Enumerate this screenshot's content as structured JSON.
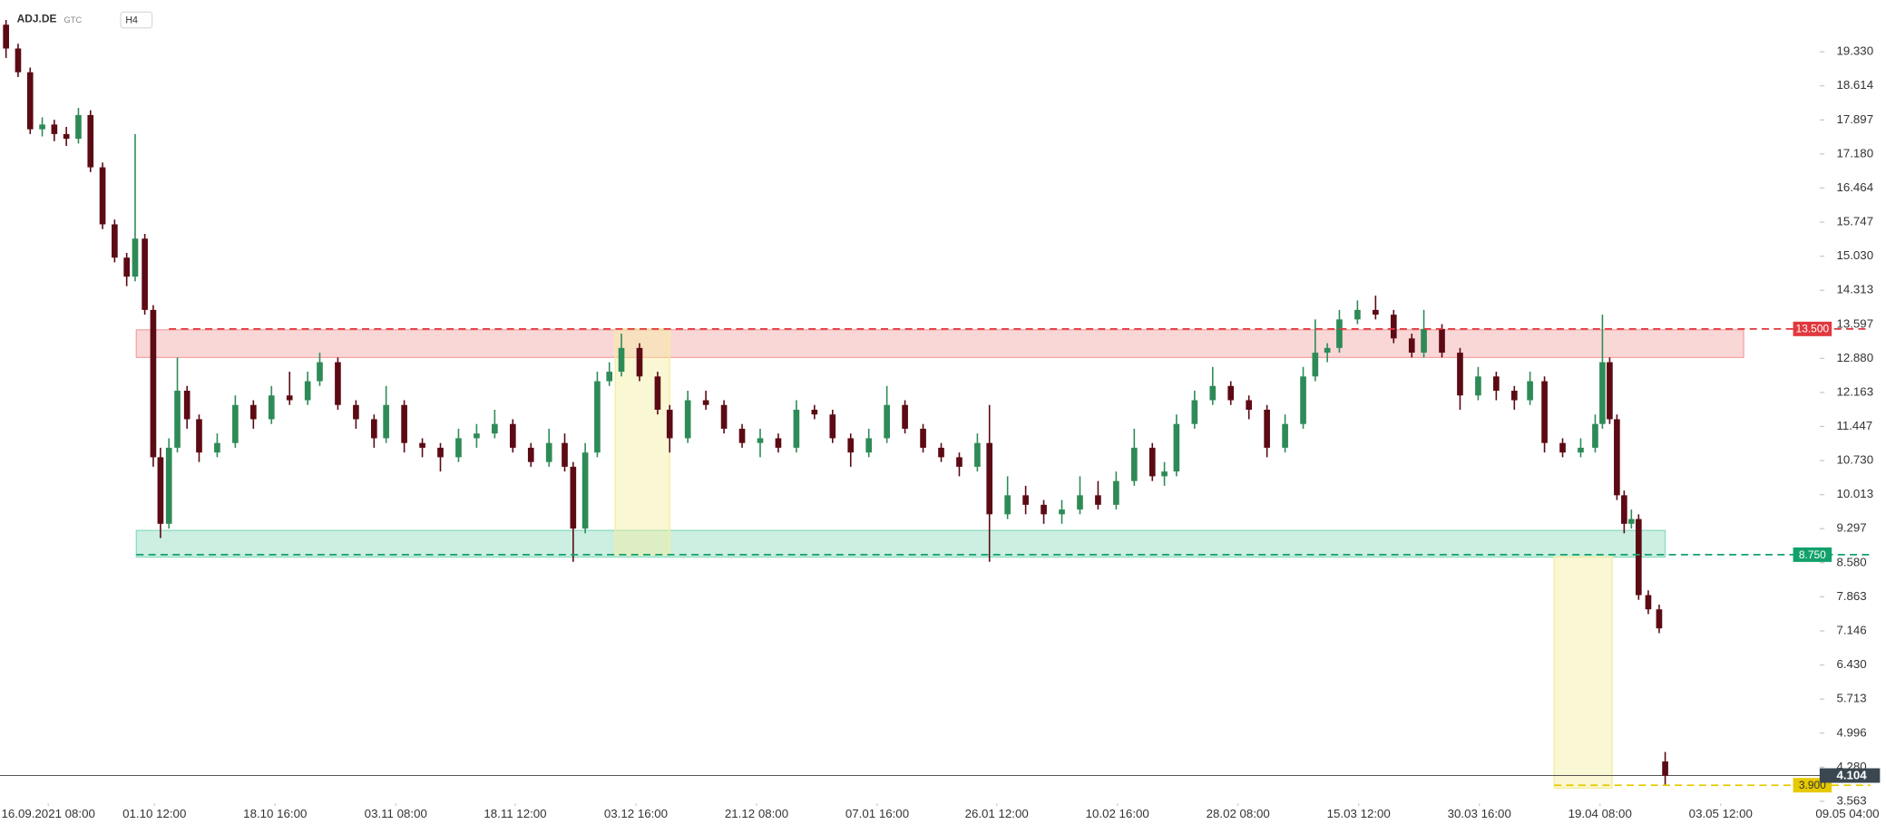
{
  "header": {
    "symbol": "ADJ.DE",
    "order": "GTC",
    "timeframe": "H4"
  },
  "chart_data": {
    "type": "candlestick",
    "xlim": [
      0,
      1563
    ],
    "ylim": [
      3.44,
      20.42
    ],
    "xticks": [
      {
        "value": 40,
        "label": "16.09.2021 08:00"
      },
      {
        "value": 128,
        "label": "01.10 12:00"
      },
      {
        "value": 228,
        "label": "18.10 16:00"
      },
      {
        "value": 328,
        "label": "03.11 08:00"
      },
      {
        "value": 427,
        "label": "18.11 12:00"
      },
      {
        "value": 527,
        "label": "03.12 16:00"
      },
      {
        "value": 627,
        "label": "21.12 08:00"
      },
      {
        "value": 727,
        "label": "07.01 16:00"
      },
      {
        "value": 826,
        "label": "26.01 12:00"
      },
      {
        "value": 926,
        "label": "10.02 16:00"
      },
      {
        "value": 1026,
        "label": "28.02 08:00"
      },
      {
        "value": 1126,
        "label": "15.03 12:00"
      },
      {
        "value": 1226,
        "label": "30.03 16:00"
      },
      {
        "value": 1326,
        "label": "19.04 08:00"
      },
      {
        "value": 1426,
        "label": "03.05 12:00"
      },
      {
        "value": 1531,
        "label": "09.05 04:00"
      }
    ],
    "yticks": [
      {
        "value": 19.33,
        "label": "19.330"
      },
      {
        "value": 18.614,
        "label": "18.614"
      },
      {
        "value": 17.897,
        "label": "17.897"
      },
      {
        "value": 17.18,
        "label": "17.180"
      },
      {
        "value": 16.464,
        "label": "16.464"
      },
      {
        "value": 15.747,
        "label": "15.747"
      },
      {
        "value": 15.03,
        "label": "15.030"
      },
      {
        "value": 14.313,
        "label": "14.313"
      },
      {
        "value": 13.597,
        "label": "13.597"
      },
      {
        "value": 12.88,
        "label": "12.880"
      },
      {
        "value": 12.163,
        "label": "12.163"
      },
      {
        "value": 11.447,
        "label": "11.447"
      },
      {
        "value": 10.73,
        "label": "10.730"
      },
      {
        "value": 10.013,
        "label": "10.013"
      },
      {
        "value": 9.297,
        "label": "9.297"
      },
      {
        "value": 8.58,
        "label": "8.580"
      },
      {
        "value": 7.863,
        "label": "7.863"
      },
      {
        "value": 7.146,
        "label": "7.146"
      },
      {
        "value": 6.43,
        "label": "6.430"
      },
      {
        "value": 5.713,
        "label": "5.713"
      },
      {
        "value": 4.996,
        "label": "4.996"
      },
      {
        "value": 4.28,
        "label": "4.280"
      },
      {
        "value": 3.563,
        "label": "3.563"
      }
    ],
    "up_color": "#2e8b57",
    "down_color": "#5c0a14",
    "candles": [
      [
        5,
        19.9,
        20.0,
        19.2,
        19.4
      ],
      [
        15,
        19.4,
        19.5,
        18.8,
        18.9
      ],
      [
        25,
        18.9,
        19.0,
        17.6,
        17.7
      ],
      [
        35,
        17.7,
        17.95,
        17.55,
        17.8
      ],
      [
        45,
        17.8,
        17.9,
        17.45,
        17.6
      ],
      [
        55,
        17.6,
        17.75,
        17.35,
        17.5
      ],
      [
        65,
        17.5,
        18.15,
        17.4,
        18.0
      ],
      [
        75,
        18.0,
        18.1,
        16.8,
        16.9
      ],
      [
        85,
        16.9,
        17.0,
        15.6,
        15.7
      ],
      [
        95,
        15.7,
        15.8,
        14.9,
        15.0
      ],
      [
        105,
        15.0,
        15.1,
        14.4,
        14.6
      ],
      [
        112,
        14.6,
        17.6,
        14.5,
        15.4
      ],
      [
        120,
        15.4,
        15.5,
        13.8,
        13.9
      ],
      [
        127,
        13.9,
        14.0,
        10.6,
        10.8
      ],
      [
        133,
        10.8,
        11.0,
        9.1,
        9.4
      ],
      [
        140,
        9.4,
        11.2,
        9.3,
        11.0
      ],
      [
        147,
        11.0,
        12.9,
        10.9,
        12.2
      ],
      [
        155,
        12.2,
        12.3,
        11.4,
        11.6
      ],
      [
        165,
        11.6,
        11.7,
        10.7,
        10.9
      ],
      [
        180,
        10.9,
        11.3,
        10.8,
        11.1
      ],
      [
        195,
        11.1,
        12.1,
        11.0,
        11.9
      ],
      [
        210,
        11.9,
        12.0,
        11.4,
        11.6
      ],
      [
        225,
        11.6,
        12.3,
        11.5,
        12.1
      ],
      [
        240,
        12.1,
        12.6,
        11.9,
        12.0
      ],
      [
        255,
        12.0,
        12.6,
        11.9,
        12.4
      ],
      [
        265,
        12.4,
        13.0,
        12.3,
        12.8
      ],
      [
        280,
        12.8,
        12.9,
        11.8,
        11.9
      ],
      [
        295,
        11.9,
        12.0,
        11.4,
        11.6
      ],
      [
        310,
        11.6,
        11.7,
        11.0,
        11.2
      ],
      [
        320,
        11.2,
        12.3,
        11.1,
        11.9
      ],
      [
        335,
        11.9,
        12.0,
        10.9,
        11.1
      ],
      [
        350,
        11.1,
        11.2,
        10.8,
        11.0
      ],
      [
        365,
        11.0,
        11.1,
        10.5,
        10.8
      ],
      [
        380,
        10.8,
        11.4,
        10.7,
        11.2
      ],
      [
        395,
        11.2,
        11.5,
        11.0,
        11.3
      ],
      [
        410,
        11.3,
        11.8,
        11.2,
        11.5
      ],
      [
        425,
        11.5,
        11.6,
        10.9,
        11.0
      ],
      [
        440,
        11.0,
        11.1,
        10.6,
        10.7
      ],
      [
        455,
        10.7,
        11.4,
        10.6,
        11.1
      ],
      [
        468,
        11.1,
        11.3,
        10.5,
        10.6
      ],
      [
        475,
        10.6,
        10.7,
        8.6,
        9.3
      ],
      [
        485,
        9.3,
        11.1,
        9.2,
        10.9
      ],
      [
        495,
        10.9,
        12.6,
        10.8,
        12.4
      ],
      [
        505,
        12.4,
        12.8,
        12.3,
        12.6
      ],
      [
        515,
        12.6,
        13.4,
        12.5,
        13.1
      ],
      [
        530,
        13.1,
        13.2,
        12.4,
        12.5
      ],
      [
        545,
        12.5,
        12.6,
        11.7,
        11.8
      ],
      [
        555,
        11.8,
        11.9,
        10.9,
        11.2
      ],
      [
        570,
        11.2,
        12.2,
        11.1,
        12.0
      ],
      [
        585,
        12.0,
        12.2,
        11.8,
        11.9
      ],
      [
        600,
        11.9,
        12.0,
        11.3,
        11.4
      ],
      [
        615,
        11.4,
        11.5,
        11.0,
        11.1
      ],
      [
        630,
        11.1,
        11.4,
        10.8,
        11.2
      ],
      [
        645,
        11.2,
        11.3,
        10.9,
        11.0
      ],
      [
        660,
        11.0,
        12.0,
        10.9,
        11.8
      ],
      [
        675,
        11.8,
        11.9,
        11.6,
        11.7
      ],
      [
        690,
        11.7,
        11.8,
        11.1,
        11.2
      ],
      [
        705,
        11.2,
        11.3,
        10.6,
        10.9
      ],
      [
        720,
        10.9,
        11.4,
        10.8,
        11.2
      ],
      [
        735,
        11.2,
        12.3,
        11.1,
        11.9
      ],
      [
        750,
        11.9,
        12.0,
        11.3,
        11.4
      ],
      [
        765,
        11.4,
        11.5,
        10.9,
        11.0
      ],
      [
        780,
        11.0,
        11.1,
        10.7,
        10.8
      ],
      [
        795,
        10.8,
        10.9,
        10.4,
        10.6
      ],
      [
        810,
        10.6,
        11.3,
        10.5,
        11.1
      ],
      [
        820,
        11.1,
        11.9,
        8.6,
        9.6
      ],
      [
        835,
        9.6,
        10.4,
        9.5,
        10.0
      ],
      [
        850,
        10.0,
        10.2,
        9.6,
        9.8
      ],
      [
        865,
        9.8,
        9.9,
        9.4,
        9.6
      ],
      [
        880,
        9.6,
        9.9,
        9.4,
        9.7
      ],
      [
        895,
        9.7,
        10.4,
        9.6,
        10.0
      ],
      [
        910,
        10.0,
        10.3,
        9.7,
        9.8
      ],
      [
        925,
        9.8,
        10.5,
        9.7,
        10.3
      ],
      [
        940,
        10.3,
        11.4,
        10.2,
        11.0
      ],
      [
        955,
        11.0,
        11.1,
        10.3,
        10.4
      ],
      [
        965,
        10.4,
        10.7,
        10.2,
        10.5
      ],
      [
        975,
        10.5,
        11.7,
        10.4,
        11.5
      ],
      [
        990,
        11.5,
        12.2,
        11.4,
        12.0
      ],
      [
        1005,
        12.0,
        12.7,
        11.9,
        12.3
      ],
      [
        1020,
        12.3,
        12.4,
        11.9,
        12.0
      ],
      [
        1035,
        12.0,
        12.1,
        11.6,
        11.8
      ],
      [
        1050,
        11.8,
        11.9,
        10.8,
        11.0
      ],
      [
        1065,
        11.0,
        11.7,
        10.9,
        11.5
      ],
      [
        1080,
        11.5,
        12.7,
        11.4,
        12.5
      ],
      [
        1090,
        12.5,
        13.7,
        12.4,
        13.0
      ],
      [
        1100,
        13.0,
        13.2,
        12.8,
        13.1
      ],
      [
        1110,
        13.1,
        13.9,
        13.0,
        13.7
      ],
      [
        1125,
        13.7,
        14.1,
        13.6,
        13.9
      ],
      [
        1140,
        13.9,
        14.2,
        13.7,
        13.8
      ],
      [
        1155,
        13.8,
        13.9,
        13.2,
        13.3
      ],
      [
        1170,
        13.3,
        13.4,
        12.9,
        13.0
      ],
      [
        1180,
        13.0,
        13.9,
        12.9,
        13.5
      ],
      [
        1195,
        13.5,
        13.6,
        12.9,
        13.0
      ],
      [
        1210,
        13.0,
        13.1,
        11.8,
        12.1
      ],
      [
        1225,
        12.1,
        12.7,
        12.0,
        12.5
      ],
      [
        1240,
        12.5,
        12.6,
        12.0,
        12.2
      ],
      [
        1255,
        12.2,
        12.3,
        11.8,
        12.0
      ],
      [
        1268,
        12.0,
        12.6,
        11.9,
        12.4
      ],
      [
        1280,
        12.4,
        12.5,
        10.9,
        11.1
      ],
      [
        1295,
        11.1,
        11.2,
        10.8,
        10.9
      ],
      [
        1310,
        10.9,
        11.2,
        10.8,
        11.0
      ],
      [
        1322,
        11.0,
        11.7,
        10.9,
        11.5
      ],
      [
        1328,
        11.5,
        13.8,
        11.4,
        12.8
      ],
      [
        1334,
        12.8,
        12.9,
        11.5,
        11.6
      ],
      [
        1340,
        11.6,
        11.7,
        9.9,
        10.0
      ],
      [
        1346,
        10.0,
        10.1,
        9.2,
        9.4
      ],
      [
        1352,
        9.4,
        9.7,
        9.3,
        9.5
      ],
      [
        1358,
        9.5,
        9.6,
        7.8,
        7.9
      ],
      [
        1366,
        7.9,
        8.0,
        7.5,
        7.6
      ],
      [
        1375,
        7.6,
        7.7,
        7.1,
        7.2
      ],
      [
        1380,
        4.4,
        4.6,
        3.9,
        4.1
      ]
    ],
    "zones": [
      {
        "x": [
          113,
          1445
        ],
        "y": [
          12.9,
          13.48
        ],
        "color": "#f4a6a6"
      },
      {
        "x": [
          113,
          1380
        ],
        "y": [
          8.7,
          9.26
        ],
        "color": "#8fdcbf"
      },
      {
        "x": [
          510,
          555
        ],
        "y": [
          8.75,
          13.5
        ],
        "color": "#f5eda0"
      },
      {
        "x": [
          1288,
          1336
        ],
        "y": [
          3.84,
          8.7
        ],
        "color": "#f5eda0"
      }
    ],
    "levels": [
      {
        "value": 13.5,
        "label": "13.500",
        "color": "#e0383e",
        "from": 140
      },
      {
        "value": 8.75,
        "label": "8.750",
        "color": "#13a16b",
        "from": 113
      },
      {
        "value": 3.9,
        "label": "3.900",
        "color": "#e6c900",
        "from": 1288
      }
    ],
    "last_price": {
      "value": 4.104,
      "label": "4.104",
      "color": "#3a4750"
    }
  }
}
